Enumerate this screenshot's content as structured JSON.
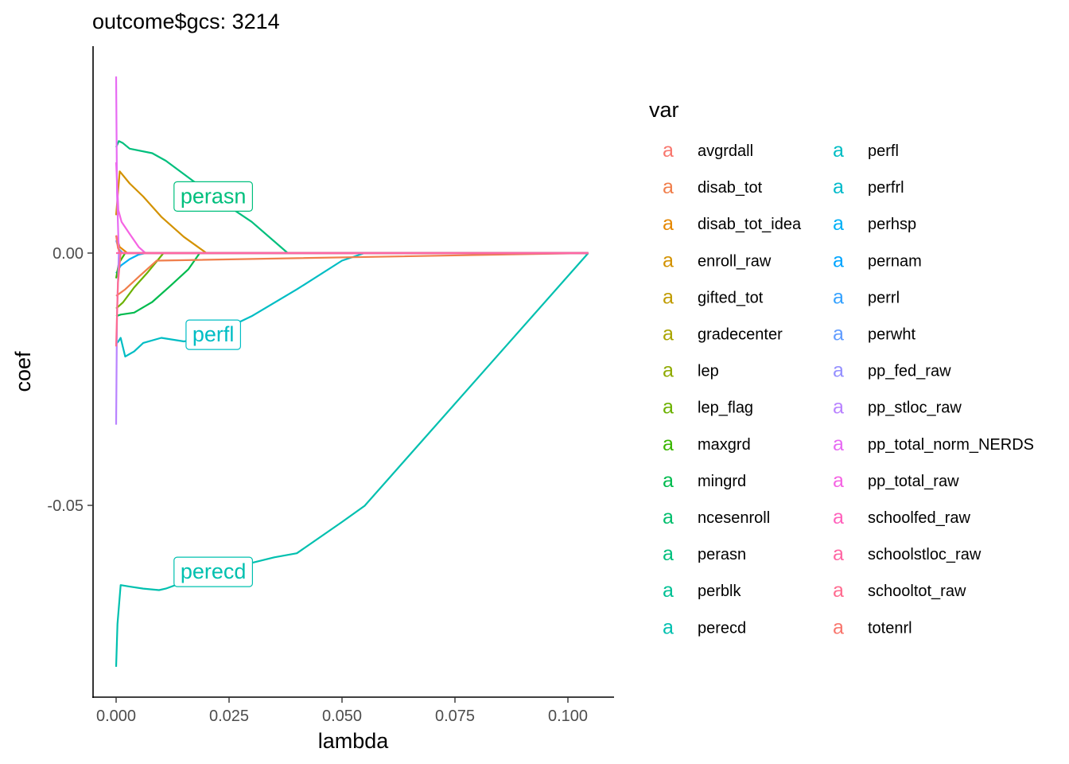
{
  "chart_data": {
    "type": "line",
    "title": "outcome$gcs: 3214",
    "xlabel": "lambda",
    "ylabel": "coef",
    "xlim": [
      -0.0025,
      0.11
    ],
    "ylim": [
      -0.088,
      0.041
    ],
    "x_ticks": [
      0.0,
      0.025,
      0.05,
      0.075,
      0.1
    ],
    "x_tick_labels": [
      "0.000",
      "0.025",
      "0.050",
      "0.075",
      "0.100"
    ],
    "y_ticks": [
      0.0,
      -0.05
    ],
    "y_tick_labels": [
      "0.00",
      "-0.05"
    ],
    "grid": false,
    "legend": {
      "title": "var",
      "placement": "right",
      "key_glyph": "a",
      "entries": [
        "avgrdall",
        "disab_tot",
        "disab_tot_idea",
        "enroll_raw",
        "gifted_tot",
        "gradecenter",
        "lep",
        "lep_flag",
        "maxgrd",
        "mingrd",
        "ncesenroll",
        "perasn",
        "perblk",
        "perecd",
        "perfl",
        "perfrl",
        "perhsp",
        "pernam",
        "perrl",
        "perwht",
        "pp_fed_raw",
        "pp_stloc_raw",
        "pp_total_norm_NERDS",
        "pp_total_raw",
        "schoolfed_raw",
        "schoolstloc_raw",
        "schooltot_raw",
        "totenrl"
      ],
      "colors": [
        "#F8766D",
        "#F07E4B",
        "#E58700",
        "#D39200",
        "#C09B00",
        "#A9A400",
        "#8FAA00",
        "#6BB100",
        "#39B600",
        "#00BB4E",
        "#00BE6C",
        "#00BF7D",
        "#00C094",
        "#00C0AF",
        "#00BDC4",
        "#00BACA",
        "#00B0F6",
        "#00A5FF",
        "#35A2FF",
        "#619CFF",
        "#9590FF",
        "#B983FF",
        "#E76BF3",
        "#F564E3",
        "#FF62BC",
        "#FF67A4",
        "#FF6C90",
        "#F8766D"
      ]
    },
    "annotations": [
      {
        "label": "perasn",
        "x": 0.0215,
        "y": 0.0113,
        "color": "#00BF7D"
      },
      {
        "label": "perfl",
        "x": 0.0215,
        "y": -0.0161,
        "color": "#00BDC4"
      },
      {
        "label": "perecd",
        "x": 0.0215,
        "y": -0.0631,
        "color": "#00C0AF"
      }
    ],
    "series": [
      {
        "name": "perecd",
        "color": "#00C0AF",
        "x": [
          0.0,
          0.0003,
          0.001,
          0.003,
          0.006,
          0.0095,
          0.011,
          0.015,
          0.025,
          0.035,
          0.04,
          0.05,
          0.055,
          0.1045
        ],
        "y": [
          -0.082,
          -0.0735,
          -0.0658,
          -0.0661,
          -0.0665,
          -0.0668,
          -0.0665,
          -0.0652,
          -0.0625,
          -0.0603,
          -0.0595,
          -0.0533,
          -0.0501,
          0.0
        ]
      },
      {
        "name": "perfl",
        "color": "#00BDC4",
        "x": [
          0.0,
          0.0005,
          0.001,
          0.002,
          0.004,
          0.006,
          0.01,
          0.015,
          0.02,
          0.03,
          0.04,
          0.05,
          0.055,
          0.1045
        ],
        "y": [
          -0.018,
          -0.0175,
          -0.0168,
          -0.0205,
          -0.0195,
          -0.0178,
          -0.0168,
          -0.0175,
          -0.0168,
          -0.0125,
          -0.0072,
          -0.0015,
          0.0,
          0.0
        ]
      },
      {
        "name": "perasn",
        "color": "#00BF7D",
        "x": [
          0.0,
          0.0006,
          0.0015,
          0.003,
          0.008,
          0.011,
          0.017,
          0.025,
          0.03,
          0.038,
          0.04,
          0.1045
        ],
        "y": [
          0.021,
          0.0222,
          0.0218,
          0.0207,
          0.0198,
          0.0183,
          0.0143,
          0.0092,
          0.0062,
          0.0,
          0.0,
          0.0
        ]
      },
      {
        "name": "enroll_raw",
        "color": "#D39200",
        "x": [
          0.0,
          0.0008,
          0.003,
          0.006,
          0.01,
          0.015,
          0.02,
          0.1045
        ],
        "y": [
          0.0075,
          0.0162,
          0.0138,
          0.0112,
          0.0072,
          0.0032,
          0.0,
          0.0
        ]
      },
      {
        "name": "mingrd",
        "color": "#00BB4E",
        "x": [
          0.0,
          0.001,
          0.004,
          0.008,
          0.012,
          0.016,
          0.0185,
          0.1045
        ],
        "y": [
          -0.0125,
          -0.0122,
          -0.0118,
          -0.0097,
          -0.0065,
          -0.0032,
          0.0,
          0.0
        ]
      },
      {
        "name": "lep_flag",
        "color": "#6BB100",
        "x": [
          0.0,
          0.0015,
          0.004,
          0.007,
          0.0105,
          0.1045
        ],
        "y": [
          -0.011,
          -0.0098,
          -0.0068,
          -0.0038,
          0.0,
          0.0
        ]
      },
      {
        "name": "disab_tot",
        "color": "#F07E4B",
        "x": [
          0.0,
          0.002,
          0.005,
          0.009,
          0.1045
        ],
        "y": [
          -0.0085,
          -0.0072,
          -0.0047,
          -0.0015,
          0.0
        ]
      },
      {
        "name": "pp_total_raw",
        "color": "#F564E3",
        "x": [
          0.0,
          0.0005,
          0.0012,
          0.003,
          0.005,
          0.0065,
          0.1045
        ],
        "y": [
          0.018,
          0.0085,
          0.0062,
          0.0038,
          0.0012,
          0.0,
          0.0
        ]
      },
      {
        "name": "perhsp",
        "color": "#00B0F6",
        "x": [
          0.0,
          0.001,
          0.003,
          0.005,
          0.0065,
          0.1045
        ],
        "y": [
          -0.004,
          -0.0025,
          -0.0012,
          -0.0003,
          0.0,
          0.0
        ]
      },
      {
        "name": "disab_tot_idea",
        "color": "#E58700",
        "x": [
          0.0,
          0.0008,
          0.0025,
          0.1045
        ],
        "y": [
          0.0035,
          0.0012,
          0.0,
          0.0
        ]
      },
      {
        "name": "maxgrd",
        "color": "#39B600",
        "x": [
          0.0,
          0.0006,
          0.002,
          0.1045
        ],
        "y": [
          -0.005,
          -0.002,
          0.0,
          0.0
        ]
      },
      {
        "name": "perwht",
        "color": "#619CFF",
        "x": [
          0.0,
          0.0006,
          0.0015,
          0.1045
        ],
        "y": [
          0.0025,
          0.0008,
          0.0,
          0.0
        ]
      },
      {
        "name": "pp_stloc_raw",
        "color": "#B983FF",
        "x": [
          0.0,
          0.0002,
          0.0006,
          0.1045
        ],
        "y": [
          -0.034,
          -0.012,
          0.0,
          0.0
        ]
      },
      {
        "name": "pp_total_norm_NERDS",
        "color": "#E76BF3",
        "x": [
          0.0,
          0.0002,
          0.0006,
          0.1045
        ],
        "y": [
          0.035,
          0.012,
          0.0,
          0.0
        ]
      },
      {
        "name": "schooltot_raw",
        "color": "#FF6C90",
        "x": [
          0.0,
          0.0004,
          0.001,
          0.1045
        ],
        "y": [
          -0.0185,
          -0.006,
          0.0,
          0.0
        ]
      },
      {
        "name": "totenrl",
        "color": "#F8766D",
        "x": [
          0.0,
          0.0004,
          0.001,
          0.1045
        ],
        "y": [
          0.0035,
          0.001,
          0.0,
          0.0
        ]
      },
      {
        "name": "schoolstloc_raw",
        "color": "#FF67A4",
        "x": [
          0.0,
          0.1045
        ],
        "y": [
          0.0,
          0.0
        ]
      }
    ]
  }
}
